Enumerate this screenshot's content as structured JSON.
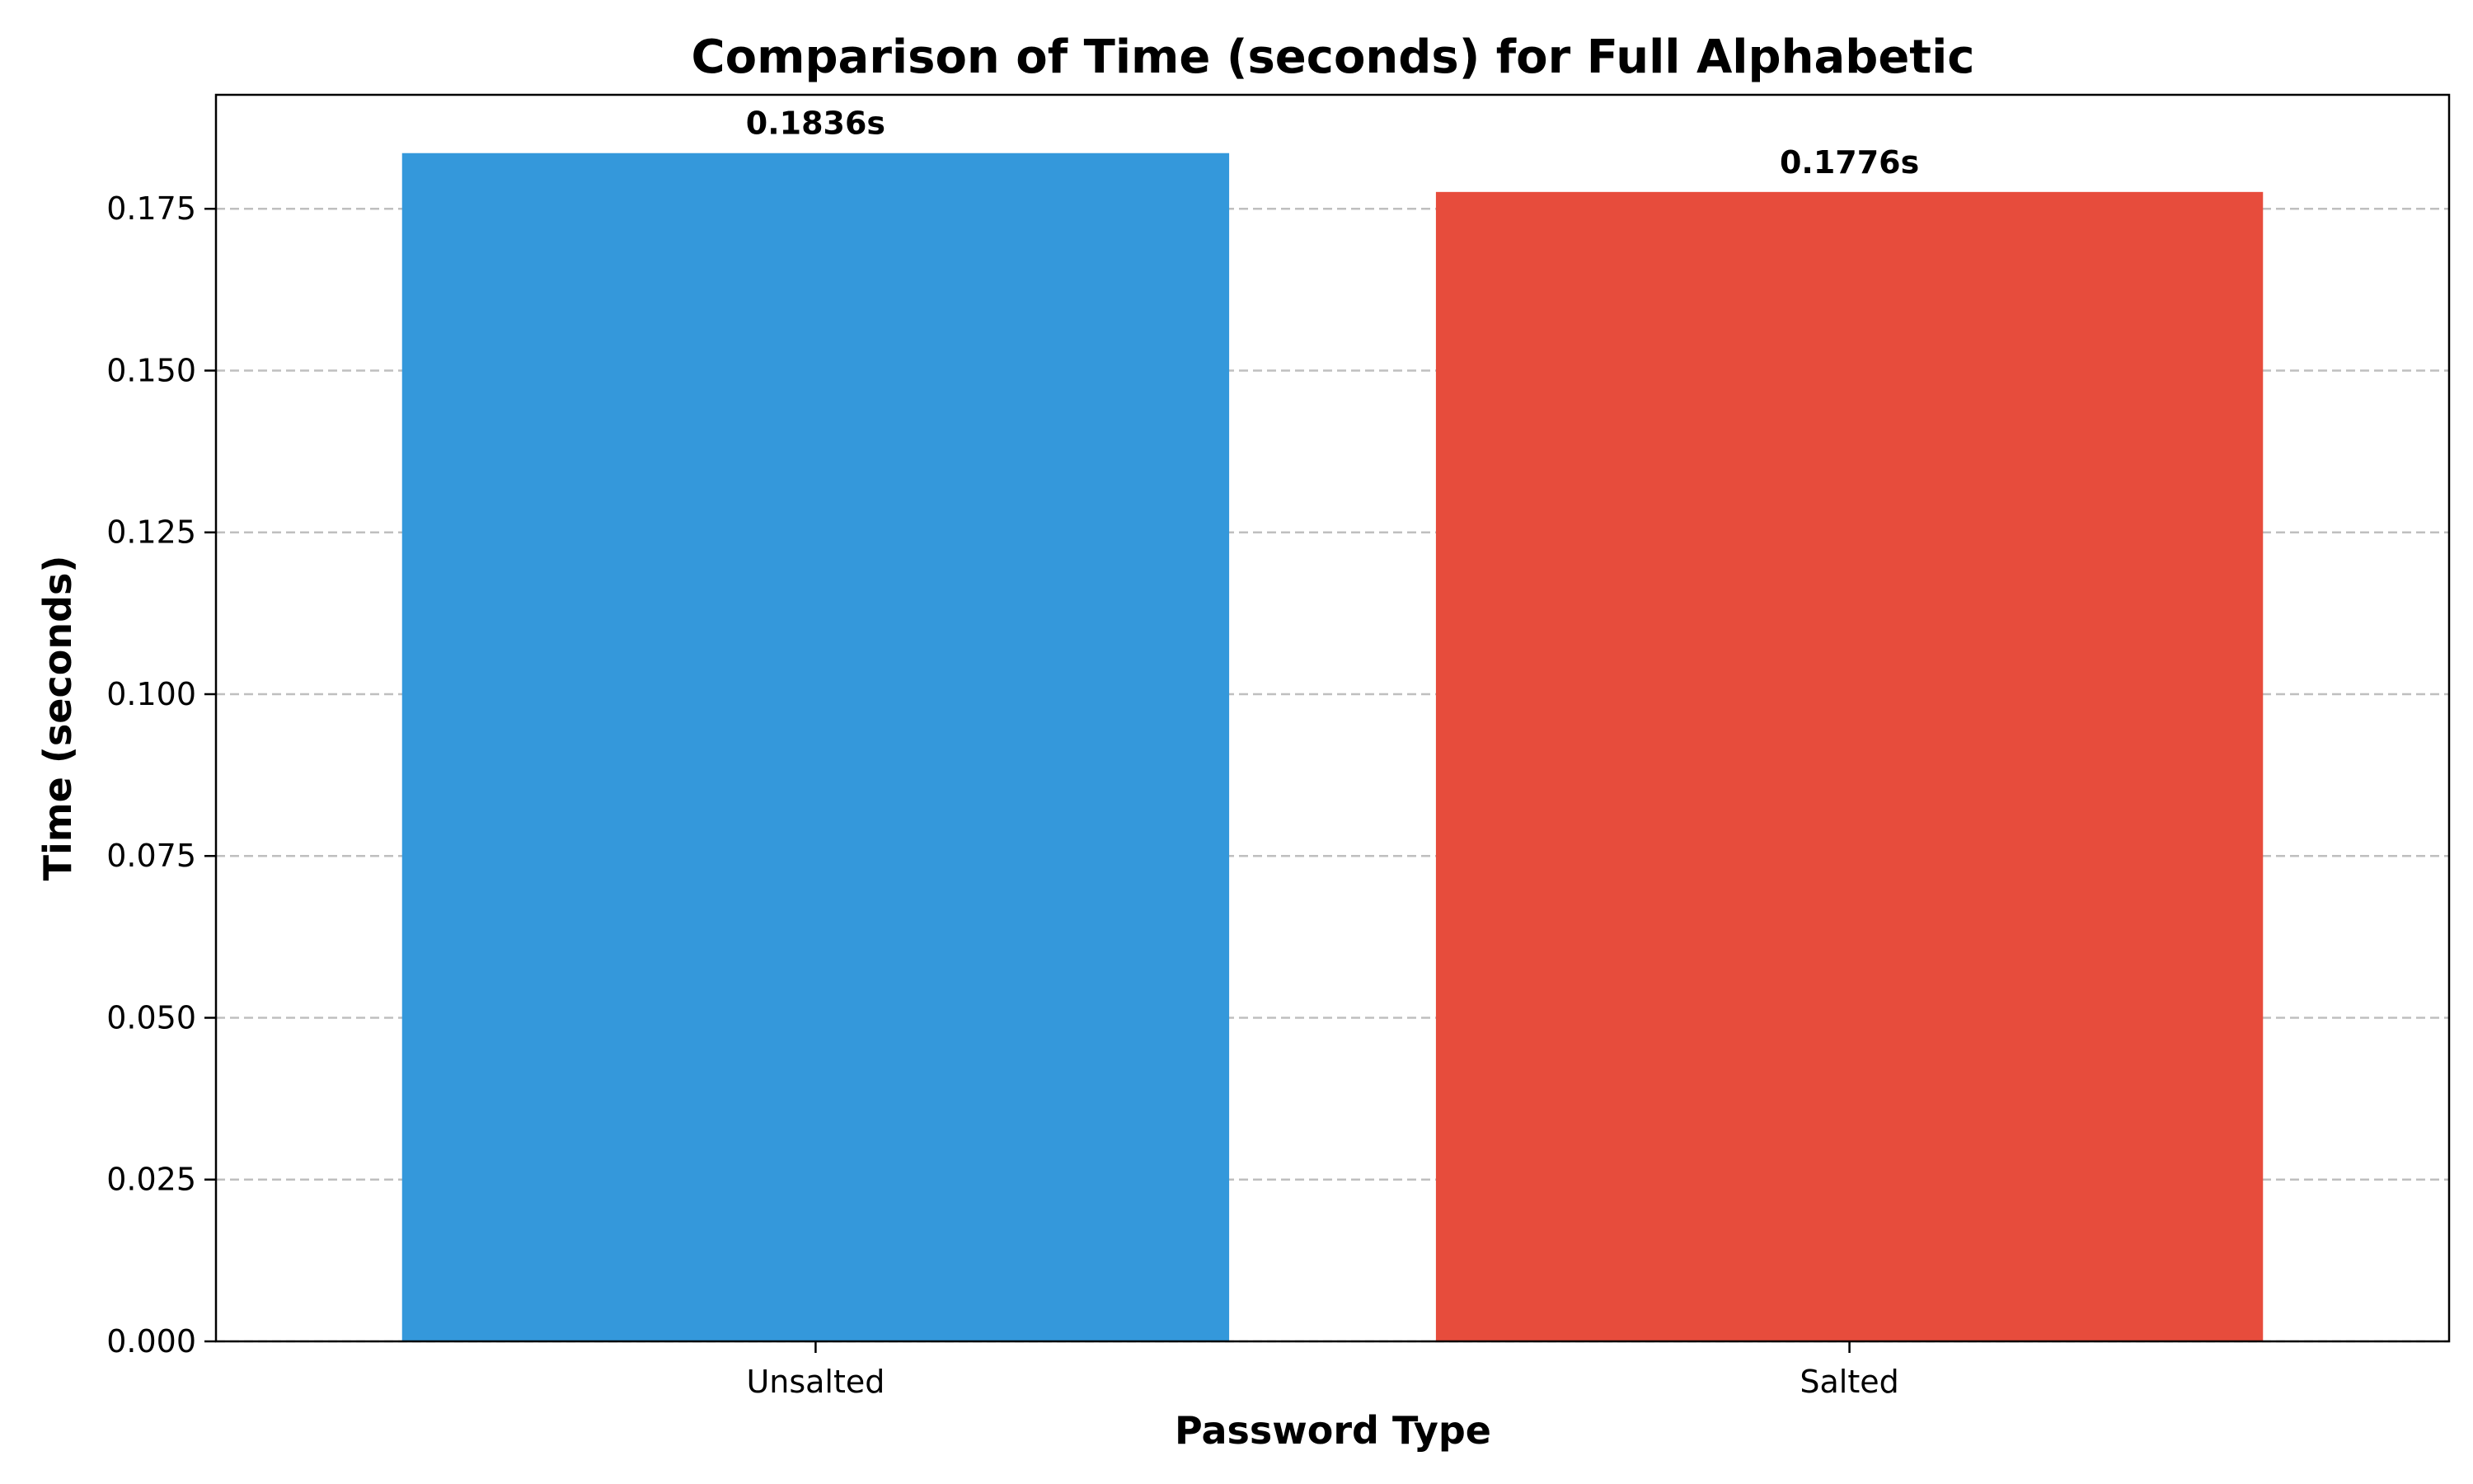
{
  "chart_data": {
    "type": "bar",
    "title": "Comparison of Time (seconds) for Full Alphabetic",
    "xlabel": "Password Type",
    "ylabel": "Time (seconds)",
    "categories": [
      "Unsalted",
      "Salted"
    ],
    "values": [
      0.1836,
      0.1776
    ],
    "value_labels": [
      "0.1836s",
      "0.1776s"
    ],
    "colors": [
      "#3498db",
      "#e74c3c"
    ],
    "ylim": [
      0,
      0.19261
    ],
    "yticks": [
      0.0,
      0.025,
      0.05,
      0.075,
      0.1,
      0.125,
      0.15,
      0.175
    ],
    "ytick_labels": [
      "0.000",
      "0.025",
      "0.050",
      "0.075",
      "0.100",
      "0.125",
      "0.150",
      "0.175"
    ],
    "grid": "y-dashed",
    "legend": "none"
  }
}
